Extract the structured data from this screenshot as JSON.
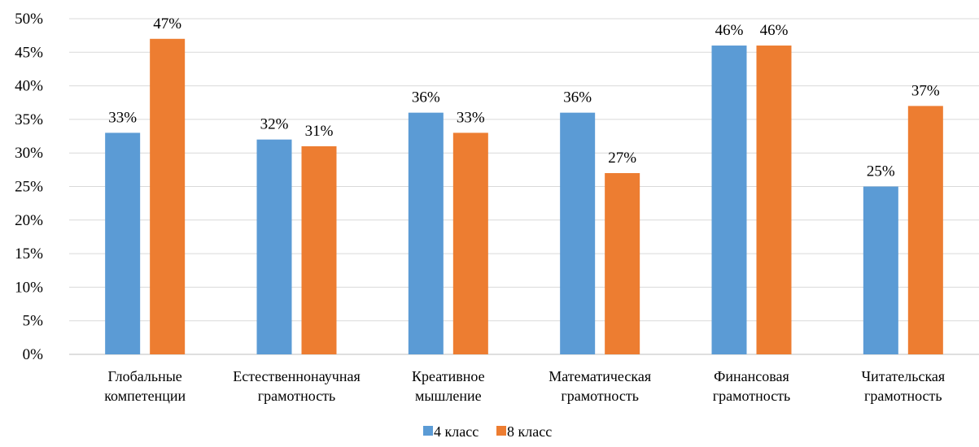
{
  "chart_data": {
    "type": "bar",
    "categories": [
      [
        "Глобальные",
        "компетенции"
      ],
      [
        "Естественнонаучная",
        "грамотность"
      ],
      [
        "Креативное",
        "мышление"
      ],
      [
        "Математическая",
        "грамотность"
      ],
      [
        "Финансовая",
        "грамотность"
      ],
      [
        "Читательская",
        "грамотность"
      ]
    ],
    "series": [
      {
        "name": "4 класс",
        "color": "#5b9bd5",
        "values": [
          33,
          32,
          36,
          36,
          46,
          25
        ]
      },
      {
        "name": "8 класс",
        "color": "#ed7d31",
        "values": [
          47,
          31,
          33,
          27,
          46,
          37
        ]
      }
    ],
    "ylim": [
      0,
      50
    ],
    "yticks": [
      0,
      5,
      10,
      15,
      20,
      25,
      30,
      35,
      40,
      45,
      50
    ],
    "value_suffix": "%",
    "grid": true,
    "legend_position": "bottom-center",
    "title": "",
    "xlabel": "",
    "ylabel": ""
  }
}
